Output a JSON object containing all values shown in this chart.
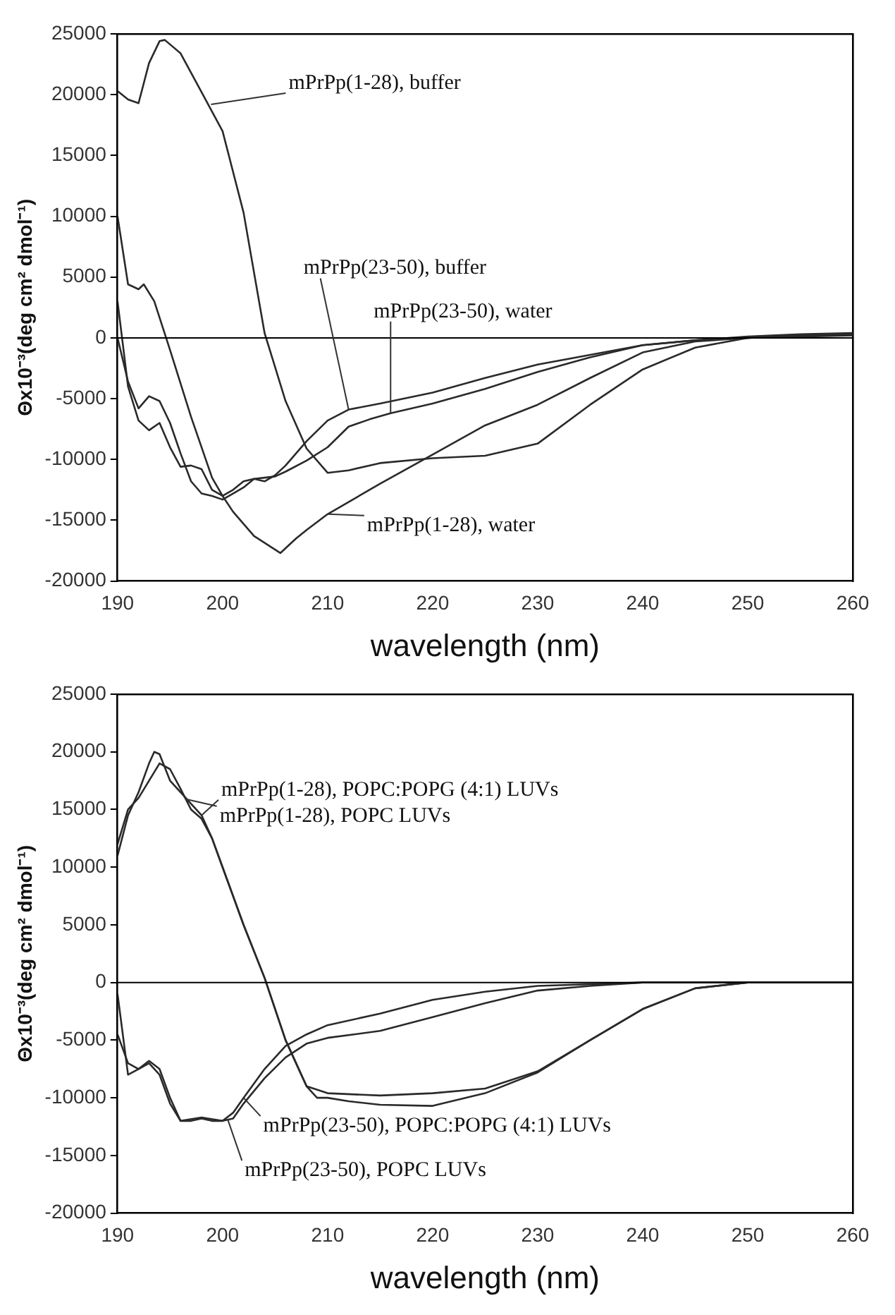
{
  "chart_data": [
    {
      "type": "line",
      "xlabel": "wavelength (nm)",
      "ylabel": "Θx10⁻³(deg cm² dmol⁻¹)",
      "xlim": [
        190,
        260
      ],
      "xticks": [
        190,
        200,
        210,
        220,
        230,
        240,
        250,
        260
      ],
      "ylim": [
        -20000,
        25000
      ],
      "yticks": [
        -20000,
        -15000,
        -10000,
        -5000,
        0,
        5000,
        10000,
        15000,
        20000,
        25000
      ],
      "grid": false,
      "legend": false,
      "marker": "none",
      "line_style": "solid",
      "ref_lines": [
        {
          "axis": "y",
          "value": 0,
          "color": "#000000"
        }
      ],
      "series": [
        {
          "color": "#2a2a2a",
          "x": [
            190,
            191,
            192,
            193,
            194,
            194.5,
            196,
            198,
            200,
            202,
            204,
            206,
            208,
            210,
            212,
            215,
            220,
            225,
            230,
            235,
            240,
            245,
            250,
            255,
            260
          ],
          "values": [
            20300,
            19600,
            19300,
            22600,
            24400,
            24500,
            23400,
            20200,
            17000,
            10300,
            400,
            -5200,
            -9100,
            -11100,
            -10900,
            -10300,
            -9900,
            -9700,
            -8700,
            -5500,
            -2600,
            -800,
            0,
            200,
            300
          ]
        },
        {
          "color": "#2a2a2a",
          "x": [
            190,
            191,
            192,
            193,
            194,
            195,
            196,
            197,
            198,
            199,
            200,
            201,
            202,
            203,
            204,
            205,
            206,
            208,
            210,
            212,
            215,
            220,
            225,
            230,
            235,
            240,
            245,
            250,
            255,
            260
          ],
          "values": [
            3000,
            -4000,
            -6800,
            -7600,
            -7000,
            -9000,
            -10600,
            -10500,
            -10800,
            -12500,
            -13000,
            -12500,
            -11800,
            -11600,
            -11800,
            -11300,
            -10500,
            -8500,
            -6800,
            -5900,
            -5400,
            -4500,
            -3300,
            -2200,
            -1400,
            -600,
            -200,
            0,
            200,
            300
          ]
        },
        {
          "color": "#2a2a2a",
          "x": [
            190,
            191,
            192,
            193,
            194,
            195,
            196,
            197,
            198,
            199,
            200,
            201,
            202,
            203,
            204,
            205,
            206,
            208,
            210,
            212,
            214,
            216,
            220,
            225,
            230,
            235,
            240,
            245,
            250,
            255,
            260
          ],
          "values": [
            0,
            -3600,
            -5800,
            -4800,
            -5200,
            -7000,
            -9500,
            -11800,
            -12800,
            -13000,
            -13300,
            -12800,
            -12300,
            -11600,
            -11500,
            -11400,
            -11000,
            -10100,
            -9000,
            -7300,
            -6700,
            -6200,
            -5400,
            -4200,
            -2800,
            -1600,
            -600,
            -200,
            100,
            300,
            400
          ]
        },
        {
          "color": "#2a2a2a",
          "x": [
            190,
            191,
            192,
            192.5,
            193.5,
            195,
            197,
            199,
            200,
            201,
            203,
            205.5,
            207,
            208,
            210,
            215,
            220,
            225,
            230,
            235,
            240,
            245,
            250,
            260
          ],
          "values": [
            10000,
            4400,
            4000,
            4400,
            3000,
            -1000,
            -6500,
            -11500,
            -13000,
            -14300,
            -16300,
            -17700,
            -16500,
            -15800,
            -14500,
            -12000,
            -9600,
            -7200,
            -5500,
            -3300,
            -1200,
            -300,
            0,
            200
          ]
        }
      ],
      "annotations": [
        {
          "text": "mPrPp(1-28), buffer",
          "x": 198.9,
          "y": 19200
        },
        {
          "text": "mPrPp(23-50), buffer",
          "x": 212,
          "y": -5900
        },
        {
          "text": "mPrPp(23-50), water",
          "x": 216,
          "y": -6200
        },
        {
          "text": "mPrPp(1-28), water",
          "x": 210,
          "y": -14500
        }
      ]
    },
    {
      "type": "line",
      "xlabel": "wavelength (nm)",
      "ylabel": "Θx10⁻³(deg cm² dmol⁻¹)",
      "xlim": [
        190,
        260
      ],
      "xticks": [
        190,
        200,
        210,
        220,
        230,
        240,
        250,
        260
      ],
      "ylim": [
        -20000,
        25000
      ],
      "yticks": [
        -20000,
        -15000,
        -10000,
        -5000,
        0,
        5000,
        10000,
        15000,
        20000,
        25000
      ],
      "grid": false,
      "legend": false,
      "marker": "none",
      "line_style": "solid",
      "ref_lines": [
        {
          "axis": "y",
          "value": 0,
          "color": "#000000"
        }
      ],
      "series": [
        {
          "color": "#2a2a2a",
          "x": [
            190,
            191,
            192,
            193,
            193.5,
            194,
            195,
            197,
            198,
            199,
            200,
            202,
            204,
            206,
            208,
            209,
            210,
            212,
            215,
            220,
            225,
            230,
            235,
            240,
            245,
            250,
            260
          ],
          "values": [
            11000,
            14500,
            16500,
            19000,
            20000,
            19800,
            17500,
            15500,
            14500,
            12500,
            10000,
            5000,
            400,
            -5000,
            -9000,
            -10000,
            -10000,
            -10300,
            -10600,
            -10700,
            -9600,
            -7800,
            -5000,
            -2300,
            -500,
            0,
            0
          ]
        },
        {
          "color": "#2a2a2a",
          "x": [
            190,
            191,
            192,
            193,
            194,
            195,
            196,
            197,
            198,
            199,
            200,
            202,
            204,
            206,
            208,
            210,
            215,
            220,
            225,
            230,
            235,
            240,
            245,
            250,
            260
          ],
          "values": [
            12000,
            15000,
            16000,
            17500,
            19000,
            18500,
            16800,
            15000,
            14200,
            12500,
            10000,
            5000,
            400,
            -5000,
            -9000,
            -9600,
            -9800,
            -9600,
            -9200,
            -7700,
            -5000,
            -2300,
            -500,
            0,
            0
          ]
        },
        {
          "color": "#2a2a2a",
          "x": [
            190,
            191,
            192,
            193,
            194,
            195,
            196,
            197,
            198,
            199,
            200,
            201,
            202,
            204,
            206,
            208,
            210,
            215,
            220,
            225,
            230,
            240,
            250,
            260
          ],
          "values": [
            -1000,
            -8000,
            -7500,
            -6800,
            -7500,
            -10000,
            -12000,
            -12000,
            -11800,
            -12000,
            -12000,
            -11300,
            -10000,
            -7500,
            -5500,
            -4500,
            -3700,
            -2700,
            -1500,
            -800,
            -300,
            0,
            0,
            0
          ]
        },
        {
          "color": "#2a2a2a",
          "x": [
            190,
            191,
            192,
            193,
            194,
            195,
            196,
            198,
            200,
            201,
            202,
            204,
            206,
            208,
            210,
            215,
            220,
            225,
            230,
            235,
            240,
            250,
            260
          ],
          "values": [
            -4500,
            -7000,
            -7500,
            -7000,
            -8000,
            -10500,
            -12000,
            -11700,
            -12000,
            -11800,
            -10500,
            -8300,
            -6500,
            -5300,
            -4800,
            -4200,
            -3000,
            -1800,
            -700,
            -300,
            0,
            0,
            0
          ]
        }
      ],
      "annotations": [
        {
          "text": "mPrPp(1-28), POPC:POPG (4:1) LUVs",
          "x": 198,
          "y": 14500
        },
        {
          "text": "mPrPp(1-28), POPC LUVs",
          "x": 196.5,
          "y": 15900
        },
        {
          "text": "mPrPp(23-50), POPC:POPG (4:1) LUVs",
          "x": 202,
          "y": -10000
        },
        {
          "text": "mPrPp(23-50), POPC LUVs",
          "x": 200.5,
          "y": -11900
        }
      ]
    }
  ]
}
